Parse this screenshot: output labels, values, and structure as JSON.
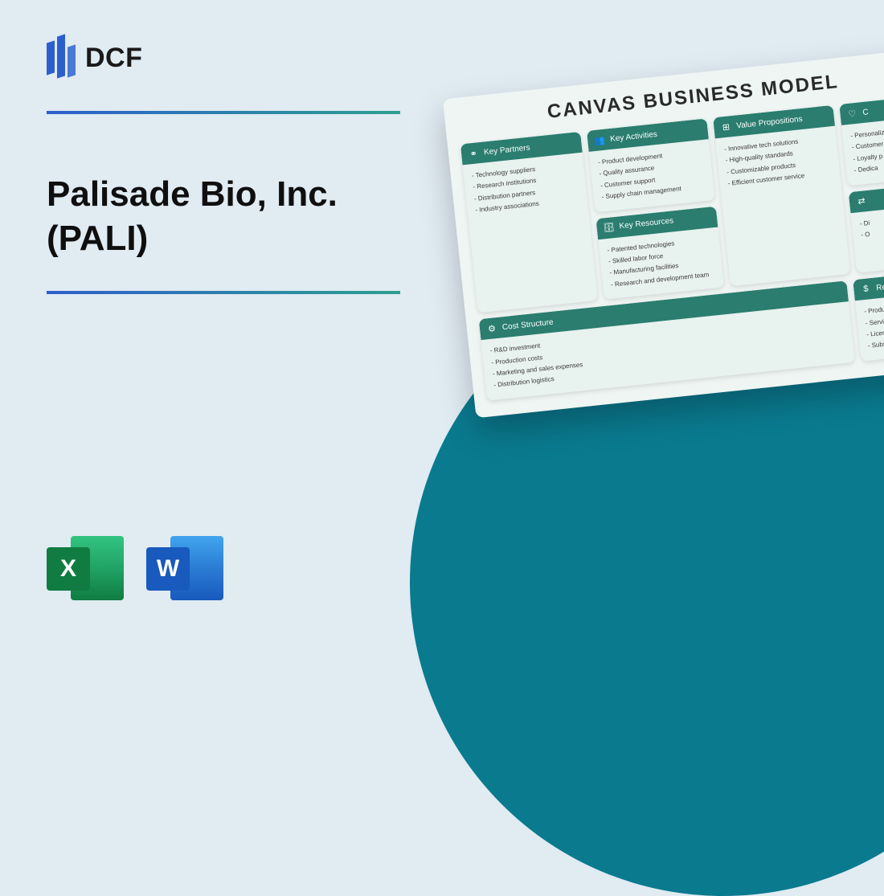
{
  "logo": {
    "text": "DCF"
  },
  "title": "Palisade Bio, Inc. (PALI)",
  "icons": {
    "excel_letter": "X",
    "word_letter": "W"
  },
  "canvas": {
    "title": "CANVAS BUSINESS MODEL",
    "colors": {
      "header_bg": "#2a7d6f",
      "card_bg": "#e8f2ef",
      "page_bg": "#eef5f3"
    },
    "cards": {
      "key_partners": {
        "label": "Key Partners",
        "icon": "⚭",
        "items": [
          "Technology suppliers",
          "Research institutions",
          "Distribution partners",
          "Industry associations"
        ]
      },
      "key_activities": {
        "label": "Key Activities",
        "icon": "👥",
        "items": [
          "Product development",
          "Quality assurance",
          "Customer support",
          "Supply chain management"
        ]
      },
      "key_resources": {
        "label": "Key Resources",
        "icon": "🗄",
        "items": [
          "Patented technologies",
          "Skilled labor force",
          "Manufacturing facilities",
          "Research and development team"
        ]
      },
      "value_propositions": {
        "label": "Value Propositions",
        "icon": "⊞",
        "items": [
          "Innovative tech solutions",
          "High-quality standards",
          "Customizable products",
          "Efficient customer service"
        ]
      },
      "customer_relationships": {
        "label": "C",
        "icon": "♡",
        "items": [
          "Personaliz",
          "Customer",
          "Loyalty p",
          "Dedica"
        ]
      },
      "channels": {
        "label": "",
        "icon": "⇄",
        "items": [
          "Di",
          "O"
        ]
      },
      "cost_structure": {
        "label": "Cost Structure",
        "icon": "⚙",
        "items": [
          "R&D investment",
          "Production costs",
          "Marketing and sales expenses",
          "Distribution logistics"
        ]
      },
      "revenue_streams": {
        "label": "Revenue S",
        "icon": "$",
        "items": [
          "Product sales",
          "Service contracts",
          "Licensing agree",
          "Subscription m"
        ]
      }
    }
  }
}
